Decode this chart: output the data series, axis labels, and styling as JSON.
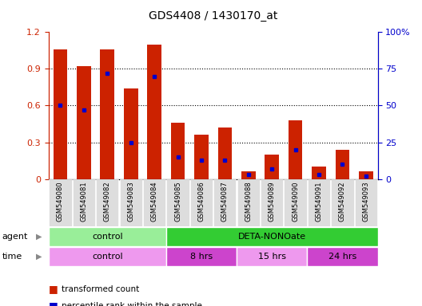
{
  "title": "GDS4408 / 1430170_at",
  "samples": [
    "GSM549080",
    "GSM549081",
    "GSM549082",
    "GSM549083",
    "GSM549084",
    "GSM549085",
    "GSM549086",
    "GSM549087",
    "GSM549088",
    "GSM549089",
    "GSM549090",
    "GSM549091",
    "GSM549092",
    "GSM549093"
  ],
  "transformed_count": [
    1.06,
    0.92,
    1.06,
    0.74,
    1.1,
    0.46,
    0.36,
    0.42,
    0.06,
    0.2,
    0.48,
    0.1,
    0.24,
    0.06
  ],
  "percentile_rank": [
    50,
    47,
    72,
    25,
    70,
    15,
    13,
    13,
    3,
    7,
    20,
    3,
    10,
    2
  ],
  "bar_color": "#cc2200",
  "dot_color": "#0000cc",
  "ylim": [
    0,
    1.2
  ],
  "y2lim": [
    0,
    100
  ],
  "yticks": [
    0,
    0.3,
    0.6,
    0.9,
    1.2
  ],
  "y2ticks": [
    0,
    25,
    50,
    75,
    100
  ],
  "ytick_labels": [
    "0",
    "0.3",
    "0.6",
    "0.9",
    "1.2"
  ],
  "y2tick_labels": [
    "0",
    "25",
    "50",
    "75",
    "100%"
  ],
  "agent_groups": [
    {
      "label": "control",
      "start": 0,
      "end": 5,
      "color": "#99ee99"
    },
    {
      "label": "DETA-NONOate",
      "start": 5,
      "end": 14,
      "color": "#33cc33"
    }
  ],
  "time_groups": [
    {
      "label": "control",
      "start": 0,
      "end": 5,
      "color": "#ee99ee"
    },
    {
      "label": "8 hrs",
      "start": 5,
      "end": 8,
      "color": "#cc44cc"
    },
    {
      "label": "15 hrs",
      "start": 8,
      "end": 11,
      "color": "#ee99ee"
    },
    {
      "label": "24 hrs",
      "start": 11,
      "end": 14,
      "color": "#cc44cc"
    }
  ],
  "legend_items": [
    {
      "label": "transformed count",
      "color": "#cc2200"
    },
    {
      "label": "percentile rank within the sample",
      "color": "#0000cc"
    }
  ],
  "bg_color": "#ffffff",
  "grid_color": "#000000",
  "tick_color_left": "#cc2200",
  "tick_color_right": "#0000cc",
  "xtick_bg": "#dddddd"
}
